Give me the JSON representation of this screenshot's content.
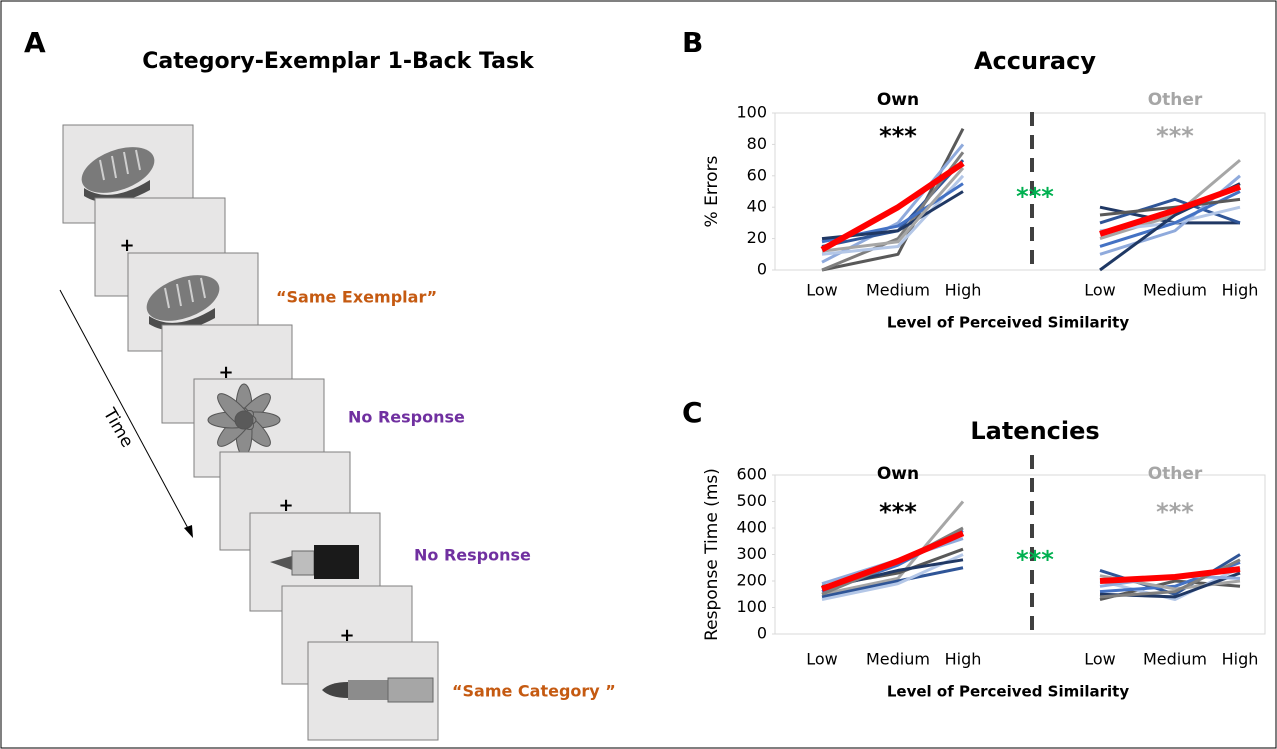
{
  "panel_a": {
    "label": "A",
    "title": "Category-Exemplar 1-Back Task",
    "time_label": "Time",
    "fixations": [
      "+",
      "+",
      "+",
      "+"
    ],
    "responses": [
      {
        "text": "“Same Exemplar”",
        "color": "#c55a11"
      },
      {
        "text": "No Response",
        "color": "#7030a0"
      },
      {
        "text": "No Response",
        "color": "#7030a0"
      },
      {
        "text": "“Same Category ”",
        "color": "#c55a11"
      }
    ]
  },
  "chart_data": [
    {
      "type": "line",
      "panel_label": "B",
      "title": "Accuracy",
      "ylabel": "% Errors",
      "xlabel": "Level of Perceived Similarity",
      "ylim": [
        0,
        100
      ],
      "yticks": [
        0,
        20,
        40,
        60,
        80,
        100
      ],
      "between_stars": "***",
      "between_stars_color": "#00b050",
      "groups": [
        {
          "label": "Own",
          "label_color": "#000000",
          "stars": "***",
          "stars_color": "#000000",
          "categories": [
            "Low",
            "Medium",
            "High"
          ],
          "series": [
            {
              "color": "#595959",
              "values": [
                0,
                10,
                90
              ]
            },
            {
              "color": "#8faadc",
              "values": [
                5,
                30,
                80
              ]
            },
            {
              "color": "#2f5597",
              "values": [
                15,
                25,
                70
              ]
            },
            {
              "color": "#7f7f7f",
              "values": [
                0,
                20,
                75
              ]
            },
            {
              "color": "#b4c7e7",
              "values": [
                10,
                15,
                60
              ]
            },
            {
              "color": "#4472c4",
              "values": [
                18,
                28,
                55
              ]
            },
            {
              "color": "#203864",
              "values": [
                20,
                25,
                50
              ]
            },
            {
              "color": "#a6a6a6",
              "values": [
                12,
                18,
                65
              ]
            },
            {
              "color": "#ff0000",
              "linewidth": 6,
              "values": [
                13,
                40,
                68
              ]
            }
          ]
        },
        {
          "label": "Other",
          "label_color": "#a6a6a6",
          "stars": "***",
          "stars_color": "#a6a6a6",
          "categories": [
            "Low",
            "Medium",
            "High"
          ],
          "series": [
            {
              "color": "#203864",
              "values": [
                40,
                30,
                30
              ]
            },
            {
              "color": "#2f5597",
              "values": [
                30,
                45,
                30
              ]
            },
            {
              "color": "#a6a6a6",
              "values": [
                20,
                35,
                70
              ]
            },
            {
              "color": "#8faadc",
              "values": [
                10,
                25,
                60
              ]
            },
            {
              "color": "#b4c7e7",
              "values": [
                25,
                30,
                40
              ]
            },
            {
              "color": "#4472c4",
              "values": [
                15,
                30,
                50
              ]
            },
            {
              "color": "#595959",
              "values": [
                35,
                40,
                45
              ]
            },
            {
              "color": "#1f3864",
              "values": [
                0,
                35,
                55
              ]
            },
            {
              "color": "#ff0000",
              "linewidth": 6,
              "values": [
                23,
                38,
                53
              ]
            }
          ]
        }
      ]
    },
    {
      "type": "line",
      "panel_label": "C",
      "title": "Latencies",
      "ylabel": "Response Time (ms)",
      "xlabel": "Level of Perceived Similarity",
      "ylim": [
        0,
        600
      ],
      "yticks": [
        0,
        100,
        200,
        300,
        400,
        500,
        600
      ],
      "between_stars": "***",
      "between_stars_color": "#00b050",
      "groups": [
        {
          "label": "Own",
          "label_color": "#000000",
          "stars": "***",
          "stars_color": "#000000",
          "categories": [
            "Low",
            "Medium",
            "High"
          ],
          "series": [
            {
              "color": "#a6a6a6",
              "values": [
                150,
                210,
                500
              ]
            },
            {
              "color": "#2f5597",
              "values": [
                140,
                200,
                250
              ]
            },
            {
              "color": "#595959",
              "values": [
                180,
                230,
                320
              ]
            },
            {
              "color": "#4472c4",
              "values": [
                160,
                260,
                390
              ]
            },
            {
              "color": "#b4c7e7",
              "values": [
                130,
                190,
                300
              ]
            },
            {
              "color": "#8faadc",
              "values": [
                190,
                280,
                360
              ]
            },
            {
              "color": "#203864",
              "values": [
                170,
                240,
                280
              ]
            },
            {
              "color": "#7f7f7f",
              "values": [
                150,
                270,
                400
              ]
            },
            {
              "color": "#ff0000",
              "linewidth": 6,
              "values": [
                170,
                275,
                380
              ]
            }
          ]
        },
        {
          "label": "Other",
          "label_color": "#a6a6a6",
          "stars": "***",
          "stars_color": "#a6a6a6",
          "categories": [
            "Low",
            "Medium",
            "High"
          ],
          "series": [
            {
              "color": "#2f5597",
              "values": [
                240,
                150,
                300
              ]
            },
            {
              "color": "#595959",
              "values": [
                130,
                200,
                180
              ]
            },
            {
              "color": "#b4c7e7",
              "values": [
                200,
                130,
                250
              ]
            },
            {
              "color": "#4472c4",
              "values": [
                160,
                180,
                270
              ]
            },
            {
              "color": "#a6a6a6",
              "values": [
                220,
                170,
                200
              ]
            },
            {
              "color": "#203864",
              "values": [
                150,
                140,
                230
              ]
            },
            {
              "color": "#8faadc",
              "values": [
                180,
                220,
                210
              ]
            },
            {
              "color": "#7f7f7f",
              "values": [
                140,
                160,
                280
              ]
            },
            {
              "color": "#ff0000",
              "linewidth": 6,
              "values": [
                200,
                215,
                245
              ]
            }
          ]
        }
      ]
    }
  ]
}
